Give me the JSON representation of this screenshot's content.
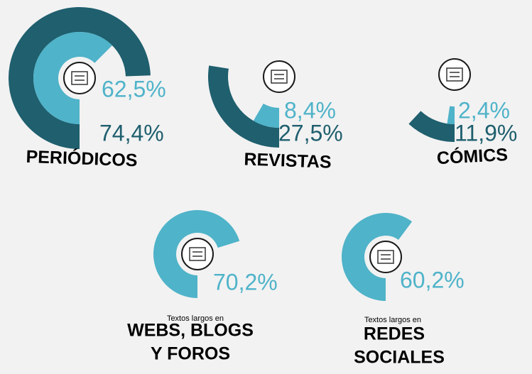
{
  "chart_data": [
    {
      "type": "donut",
      "title_lines": [
        "PERIÓDICOS"
      ],
      "values": [
        74.4,
        62.5
      ],
      "value_labels": [
        "74,4%",
        "62,5%"
      ],
      "colors": [
        "#1f5f6e",
        "#4fb3c9"
      ]
    },
    {
      "type": "donut",
      "title_lines": [
        "REVISTAS"
      ],
      "values": [
        27.5,
        8.4
      ],
      "value_labels": [
        "27,5%",
        "8,4%"
      ],
      "colors": [
        "#1f5f6e",
        "#4fb3c9"
      ]
    },
    {
      "type": "donut",
      "title_lines": [
        "CÓMICS"
      ],
      "values": [
        11.9,
        2.4
      ],
      "value_labels": [
        "11,9%",
        "2,4%"
      ],
      "colors": [
        "#1f5f6e",
        "#4fb3c9"
      ]
    },
    {
      "type": "donut",
      "subtitle": "Textos largos en",
      "title_lines": [
        "WEBS, BLOGS",
        "Y FOROS"
      ],
      "values": [
        70.2
      ],
      "value_labels": [
        "70,2%"
      ],
      "colors": [
        "#4fb3c9"
      ]
    },
    {
      "type": "donut",
      "subtitle": "Textos largos en",
      "title_lines": [
        "REDES",
        "SOCIALES"
      ],
      "values": [
        60.2
      ],
      "value_labels": [
        "60,2%"
      ],
      "colors": [
        "#4fb3c9"
      ]
    }
  ]
}
